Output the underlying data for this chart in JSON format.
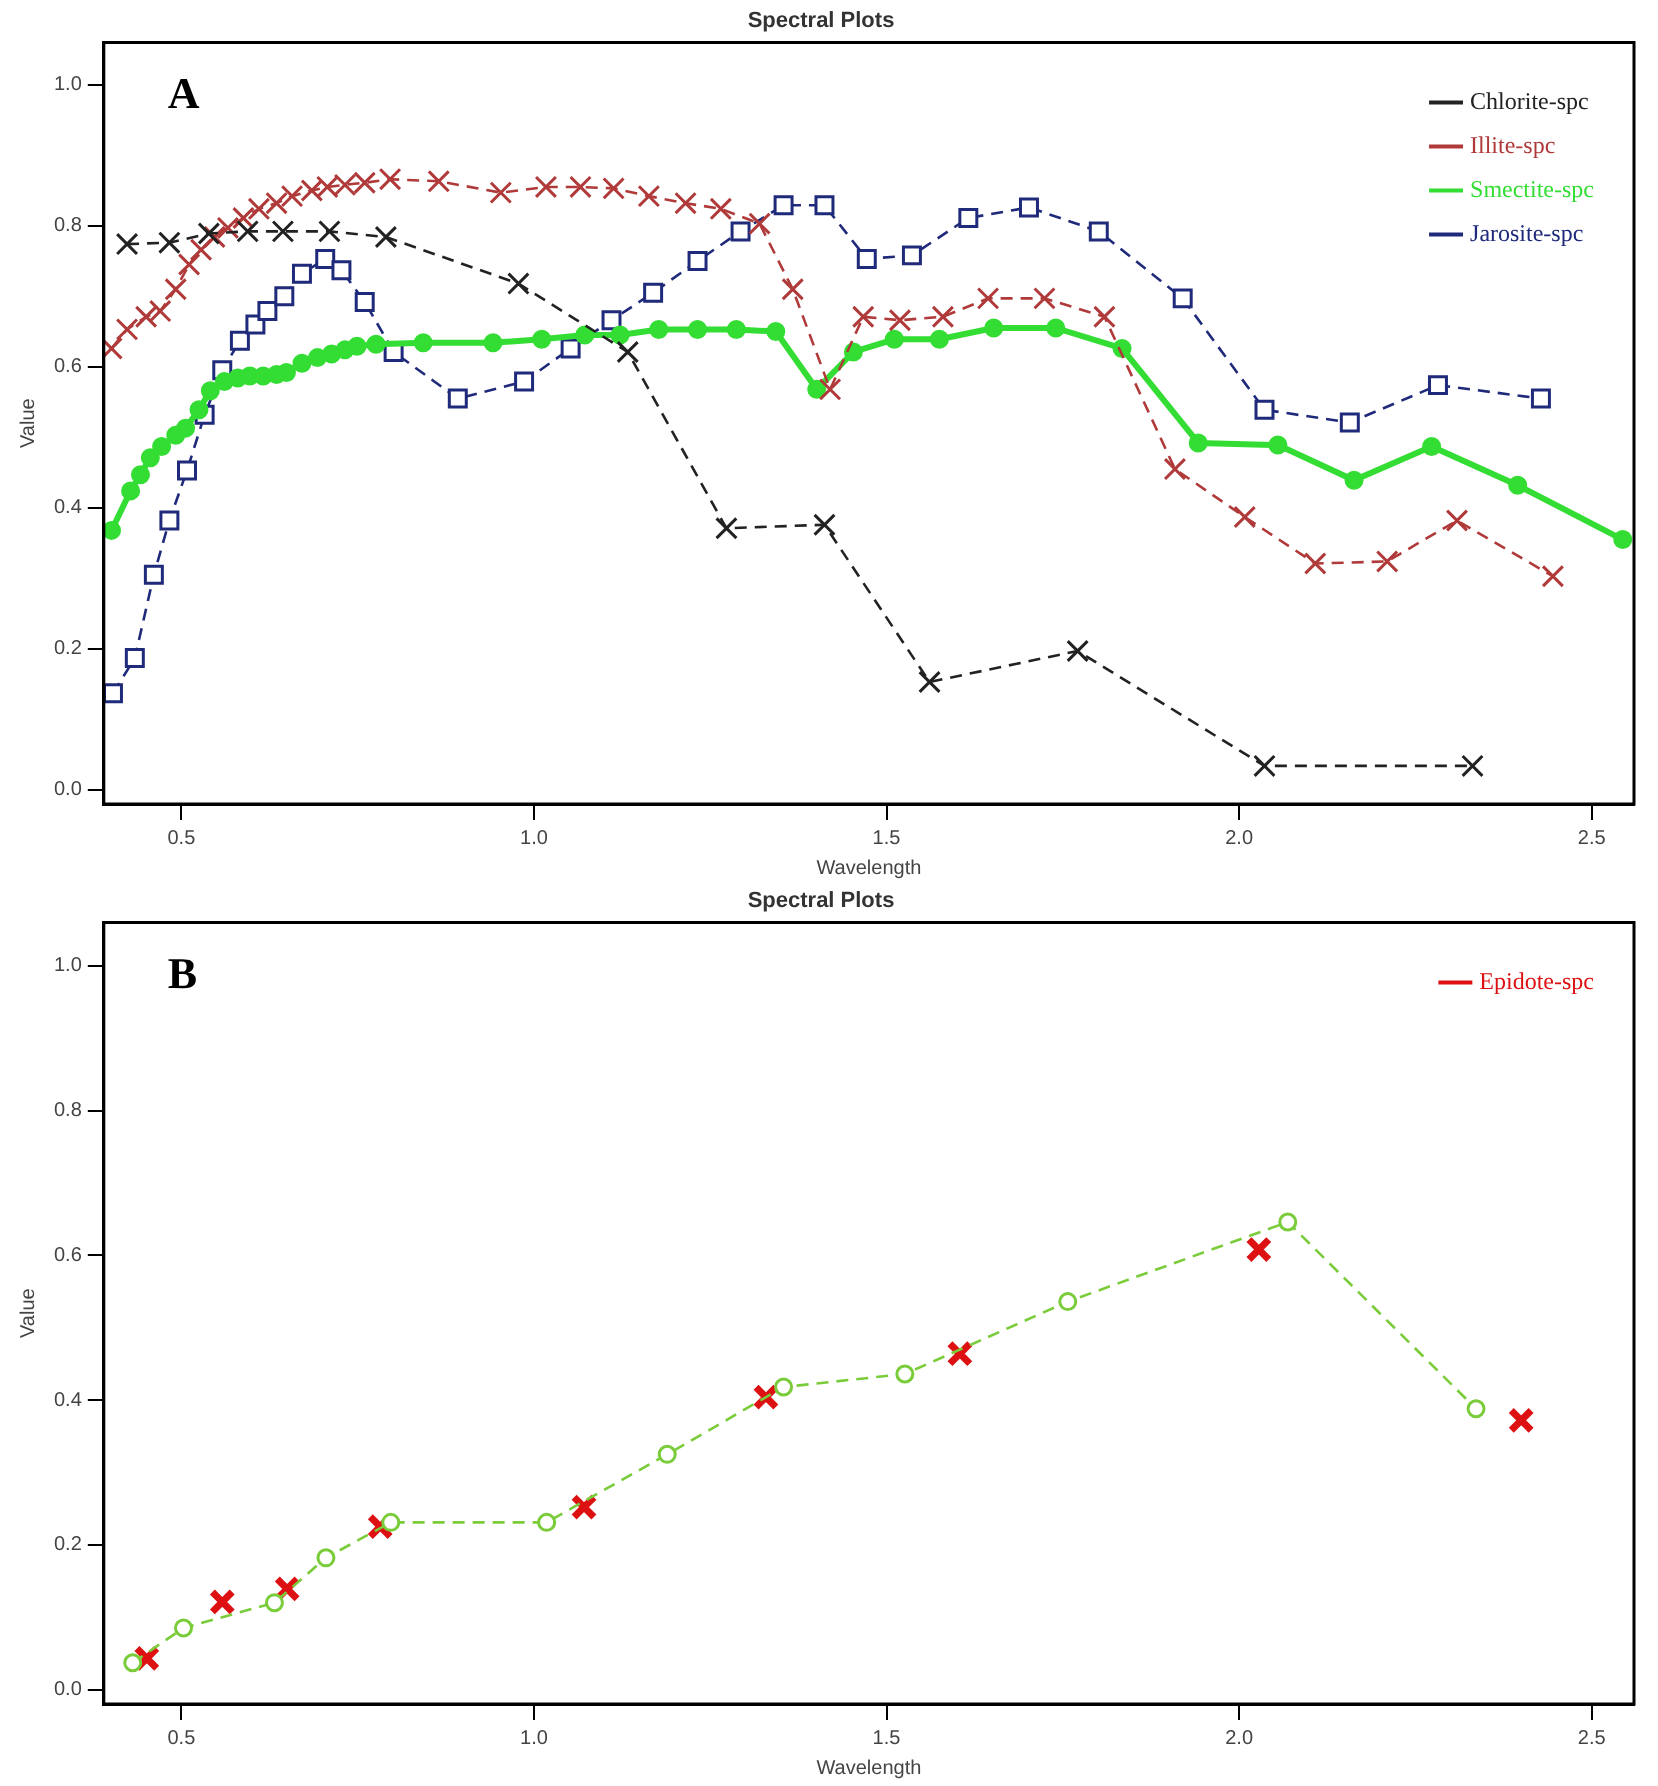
{
  "chart_data": [
    {
      "type": "line",
      "title": "Spectral Plots",
      "xlabel": "Wavelength",
      "ylabel": "Value",
      "annotations": [
        "A"
      ],
      "xlim": [
        0.39,
        2.56
      ],
      "ylim": [
        -0.02,
        1.06
      ],
      "xticks": [
        {
          "value": 0.5,
          "label": "0.5"
        },
        {
          "value": 1,
          "label": "1.0"
        },
        {
          "value": 1.5,
          "label": "1.5"
        },
        {
          "value": 2,
          "label": "2.0"
        },
        {
          "value": 2.5,
          "label": "2.5"
        }
      ],
      "yticks": [
        {
          "value": 0,
          "label": "0.0"
        },
        {
          "value": 0.2,
          "label": "0.2"
        },
        {
          "value": 0.4,
          "label": "0.4"
        },
        {
          "value": 0.6,
          "label": "0.6"
        },
        {
          "value": 0.8,
          "label": "0.8"
        },
        {
          "value": 1,
          "label": "1.0"
        }
      ],
      "legend": "top right",
      "grid": false,
      "series": [
        {
          "name": "Chlorite-spc",
          "color": "#222222",
          "marker": "cross",
          "line_style": "dashed",
          "x": [
            0.423,
            0.483,
            0.539,
            0.594,
            0.644,
            0.71,
            0.79,
            0.978,
            1.133,
            1.273,
            1.412,
            1.561,
            1.771,
            2.036,
            2.331
          ],
          "values": [
            0.774,
            0.776,
            0.789,
            0.792,
            0.792,
            0.792,
            0.784,
            0.718,
            0.621,
            0.371,
            0.376,
            0.153,
            0.197,
            0.034,
            0.034
          ]
        },
        {
          "name": "Illite-spc",
          "color": "#b03a3a",
          "marker": "cross",
          "line_style": "dashed",
          "x": [
            0.401,
            0.423,
            0.45,
            0.47,
            0.492,
            0.511,
            0.528,
            0.547,
            0.566,
            0.588,
            0.61,
            0.635,
            0.657,
            0.685,
            0.707,
            0.732,
            0.76,
            0.796,
            0.865,
            0.953,
            1.017,
            1.066,
            1.113,
            1.163,
            1.215,
            1.265,
            1.32,
            1.367,
            1.42,
            1.467,
            1.519,
            1.58,
            1.644,
            1.724,
            1.809,
            1.909,
            2.008,
            2.108,
            2.21,
            2.309,
            2.445
          ],
          "values": [
            0.626,
            0.653,
            0.671,
            0.679,
            0.71,
            0.745,
            0.766,
            0.784,
            0.797,
            0.811,
            0.824,
            0.832,
            0.842,
            0.85,
            0.855,
            0.858,
            0.861,
            0.866,
            0.863,
            0.847,
            0.855,
            0.855,
            0.853,
            0.842,
            0.832,
            0.824,
            0.803,
            0.71,
            0.568,
            0.671,
            0.666,
            0.671,
            0.697,
            0.697,
            0.671,
            0.455,
            0.387,
            0.321,
            0.324,
            0.382,
            0.303
          ]
        },
        {
          "name": "Smectite-spc",
          "color": "#33dd33",
          "marker": "circle",
          "line_style": "solid",
          "x": [
            0.401,
            0.428,
            0.442,
            0.456,
            0.472,
            0.492,
            0.506,
            0.525,
            0.541,
            0.561,
            0.58,
            0.597,
            0.616,
            0.635,
            0.649,
            0.671,
            0.693,
            0.713,
            0.732,
            0.749,
            0.776,
            0.843,
            0.942,
            1.011,
            1.072,
            1.122,
            1.177,
            1.232,
            1.287,
            1.343,
            1.401,
            1.453,
            1.511,
            1.575,
            1.652,
            1.74,
            1.834,
            1.942,
            2.055,
            2.163,
            2.273,
            2.395,
            2.544
          ],
          "values": [
            0.368,
            0.424,
            0.447,
            0.471,
            0.487,
            0.503,
            0.513,
            0.539,
            0.566,
            0.579,
            0.584,
            0.587,
            0.587,
            0.589,
            0.592,
            0.605,
            0.613,
            0.618,
            0.624,
            0.629,
            0.632,
            0.634,
            0.634,
            0.639,
            0.645,
            0.645,
            0.653,
            0.653,
            0.653,
            0.65,
            0.568,
            0.621,
            0.639,
            0.639,
            0.655,
            0.655,
            0.626,
            0.492,
            0.489,
            0.439,
            0.487,
            0.432,
            0.355
          ]
        },
        {
          "name": "Jarosite-spc",
          "color": "#1f2a7a",
          "marker": "square",
          "line_style": "dashed",
          "x": [
            0.403,
            0.434,
            0.461,
            0.483,
            0.508,
            0.533,
            0.558,
            0.583,
            0.605,
            0.622,
            0.646,
            0.671,
            0.704,
            0.727,
            0.76,
            0.801,
            0.892,
            0.986,
            1.052,
            1.11,
            1.169,
            1.232,
            1.293,
            1.354,
            1.412,
            1.472,
            1.536,
            1.616,
            1.702,
            1.801,
            1.92,
            2.036,
            2.157,
            2.282,
            2.428
          ],
          "values": [
            0.137,
            0.187,
            0.305,
            0.382,
            0.453,
            0.532,
            0.595,
            0.637,
            0.66,
            0.679,
            0.7,
            0.732,
            0.753,
            0.737,
            0.692,
            0.621,
            0.555,
            0.579,
            0.626,
            0.666,
            0.705,
            0.75,
            0.792,
            0.829,
            0.829,
            0.753,
            0.758,
            0.811,
            0.826,
            0.792,
            0.697,
            0.539,
            0.521,
            0.574,
            0.555
          ]
        }
      ]
    },
    {
      "type": "line",
      "title": "Spectral Plots",
      "xlabel": "Wavelength",
      "ylabel": "Value",
      "annotations": [
        "B"
      ],
      "xlim": [
        0.39,
        2.56
      ],
      "ylim": [
        -0.02,
        1.06
      ],
      "xticks": [
        {
          "value": 0.5,
          "label": "0.5"
        },
        {
          "value": 1,
          "label": "1.0"
        },
        {
          "value": 1.5,
          "label": "1.5"
        },
        {
          "value": 2,
          "label": "2.0"
        },
        {
          "value": 2.5,
          "label": "2.5"
        }
      ],
      "yticks": [
        {
          "value": 0,
          "label": "0.0"
        },
        {
          "value": 0.2,
          "label": "0.2"
        },
        {
          "value": 0.4,
          "label": "0.4"
        },
        {
          "value": 0.6,
          "label": "0.6"
        },
        {
          "value": 0.8,
          "label": "0.8"
        },
        {
          "value": 1,
          "label": "1.0"
        }
      ],
      "legend": "top right",
      "grid": false,
      "series": [
        {
          "color": "#7acc3a",
          "type": "line",
          "marker": "circle",
          "line_style": "dashed",
          "x": [
            0.431,
            0.503,
            0.632,
            0.705,
            0.797,
            1.018,
            1.189,
            1.354,
            1.526,
            1.757,
            2.069,
            2.336
          ],
          "values": [
            0.037,
            0.085,
            0.12,
            0.182,
            0.231,
            0.231,
            0.325,
            0.418,
            0.436,
            0.536,
            0.646,
            0.388
          ]
        },
        {
          "name": "Epidote-spc",
          "color": "#dd1111",
          "type": "scatter",
          "marker": "cross",
          "x": [
            0.451,
            0.558,
            0.65,
            0.782,
            1.071,
            1.329,
            1.604,
            2.028,
            2.4
          ],
          "values": [
            0.043,
            0.121,
            0.139,
            0.225,
            0.252,
            0.404,
            0.464,
            0.608,
            0.372
          ]
        }
      ]
    }
  ]
}
